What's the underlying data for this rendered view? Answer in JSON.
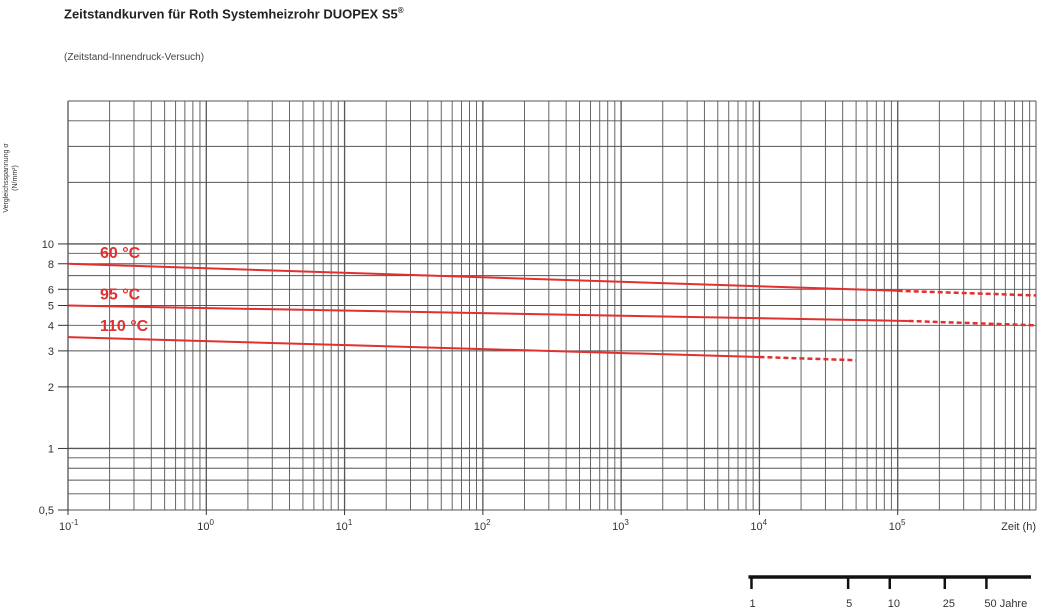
{
  "title": "Zeitstandkurven für Roth Systemheizrohr DUOPEX S5",
  "title_mark": "®",
  "subtitle": "(Zeitstand-Innendruck-Versuch)",
  "chart_data": {
    "type": "line",
    "title": "Zeitstandkurven für Roth Systemheizrohr DUOPEX S5®",
    "subtitle": "(Zeitstand-Innendruck-Versuch)",
    "xlabel": "Zeit (h)",
    "ylabel_line1": "Vergleichsspannung σ",
    "ylabel_line2": "(N/mm²)",
    "x_scale": "log",
    "y_scale": "log",
    "xlim": [
      0.1,
      1000000
    ],
    "ylim": [
      0.5,
      50
    ],
    "grid": true,
    "x_tick_labels": [
      {
        "value": 0.1,
        "base": "10",
        "exp": "-1"
      },
      {
        "value": 1,
        "base": "10",
        "exp": "0"
      },
      {
        "value": 10,
        "base": "10",
        "exp": "1"
      },
      {
        "value": 100,
        "base": "10",
        "exp": "2"
      },
      {
        "value": 1000,
        "base": "10",
        "exp": "3"
      },
      {
        "value": 10000,
        "base": "10",
        "exp": "4"
      },
      {
        "value": 100000,
        "base": "10",
        "exp": "5"
      }
    ],
    "y_tick_labels": [
      {
        "value": 0.5,
        "label": "0,5"
      },
      {
        "value": 1,
        "label": "1"
      },
      {
        "value": 2,
        "label": "2"
      },
      {
        "value": 3,
        "label": "3"
      },
      {
        "value": 4,
        "label": "4"
      },
      {
        "value": 5,
        "label": "5"
      },
      {
        "value": 6,
        "label": "6"
      },
      {
        "value": 8,
        "label": "8"
      },
      {
        "value": 10,
        "label": "10"
      }
    ],
    "series": [
      {
        "name": "60 °C",
        "color": "#e03030",
        "solid": [
          {
            "x": 0.1,
            "y": 8.0
          },
          {
            "x": 100000,
            "y": 5.9
          }
        ],
        "dashed": [
          {
            "x": 100000,
            "y": 5.9
          },
          {
            "x": 1000000,
            "y": 5.6
          }
        ]
      },
      {
        "name": "95 °C",
        "color": "#e03030",
        "solid": [
          {
            "x": 0.1,
            "y": 5.0
          },
          {
            "x": 120000,
            "y": 4.2
          }
        ],
        "dashed": [
          {
            "x": 120000,
            "y": 4.2
          },
          {
            "x": 1000000,
            "y": 4.0
          }
        ]
      },
      {
        "name": "110 °C",
        "color": "#e03030",
        "solid": [
          {
            "x": 0.1,
            "y": 3.5
          },
          {
            "x": 10000,
            "y": 2.8
          }
        ],
        "dashed": [
          {
            "x": 10000,
            "y": 2.8
          },
          {
            "x": 50000,
            "y": 2.7
          }
        ]
      }
    ],
    "years_scale": {
      "label_unit": "Jahre",
      "ticks": [
        {
          "label": "1",
          "years": 1
        },
        {
          "label": "5",
          "years": 5
        },
        {
          "label": "10",
          "years": 10
        },
        {
          "label": "25",
          "years": 25
        },
        {
          "label": "50 Jahre",
          "years": 50
        }
      ]
    }
  }
}
